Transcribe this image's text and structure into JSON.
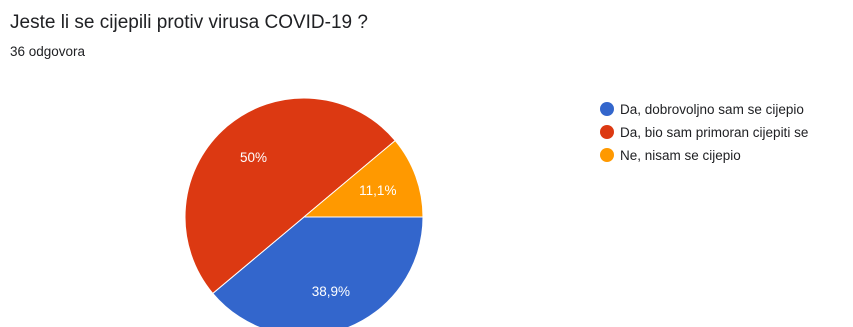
{
  "header": {
    "question": "Jeste li se cijepili protiv virusa COVID-19 ?",
    "responses": "36 odgovora"
  },
  "chart_data": {
    "type": "pie",
    "slices": [
      {
        "label": "Da, dobrovoljno sam se cijepio",
        "value": 38.9,
        "display": "38,9%",
        "color": "#3366cc"
      },
      {
        "label": "Da, bio sam primoran cijepiti se",
        "value": 50.0,
        "display": "50%",
        "color": "#dc3912"
      },
      {
        "label": "Ne, nisam se cijepio",
        "value": 11.1,
        "display": "11,1%",
        "color": "#ff9900"
      }
    ],
    "legend_position": "right"
  }
}
